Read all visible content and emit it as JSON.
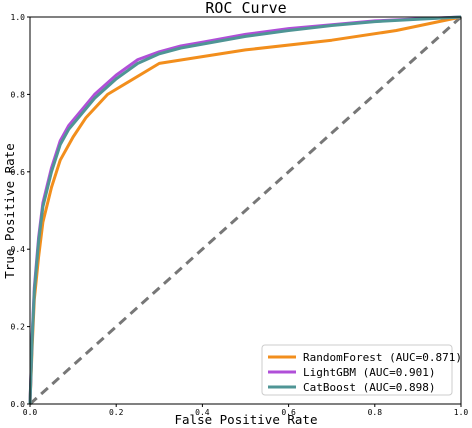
{
  "chart_data": {
    "type": "line",
    "title": "ROC Curve",
    "xlabel": "False Positive Rate",
    "ylabel": "True Positive Rate",
    "xlim": [
      0.0,
      1.0
    ],
    "ylim": [
      0.0,
      1.0
    ],
    "xticks": [
      "0.0",
      "0.2",
      "0.4",
      "0.6",
      "0.8",
      "1.0"
    ],
    "yticks": [
      "0.0",
      "0.2",
      "0.4",
      "0.6",
      "0.8",
      "1.0"
    ],
    "grid": false,
    "legend_position": "lower-right",
    "series": [
      {
        "name": "RandomForest (AUC=0.871)",
        "color": "#f28e1c",
        "x": [
          0.0,
          0.005,
          0.01,
          0.02,
          0.03,
          0.05,
          0.07,
          0.1,
          0.13,
          0.18,
          0.3,
          0.5,
          0.7,
          0.85,
          1.0
        ],
        "y": [
          0.0,
          0.15,
          0.27,
          0.38,
          0.47,
          0.56,
          0.63,
          0.69,
          0.74,
          0.8,
          0.88,
          0.915,
          0.94,
          0.965,
          1.0
        ]
      },
      {
        "name": "LightGBM (AUC=0.901)",
        "color": "#b04fd8",
        "x": [
          0.0,
          0.005,
          0.01,
          0.02,
          0.03,
          0.05,
          0.07,
          0.09,
          0.12,
          0.15,
          0.2,
          0.25,
          0.3,
          0.35,
          0.4,
          0.5,
          0.6,
          0.7,
          0.8,
          0.9,
          1.0
        ],
        "y": [
          0.0,
          0.18,
          0.3,
          0.43,
          0.52,
          0.61,
          0.68,
          0.72,
          0.76,
          0.8,
          0.85,
          0.89,
          0.91,
          0.925,
          0.935,
          0.955,
          0.97,
          0.98,
          0.99,
          0.995,
          1.0
        ]
      },
      {
        "name": "CatBoost (AUC=0.898)",
        "color": "#4f9595",
        "x": [
          0.0,
          0.005,
          0.01,
          0.02,
          0.03,
          0.05,
          0.07,
          0.09,
          0.12,
          0.15,
          0.2,
          0.25,
          0.3,
          0.35,
          0.4,
          0.5,
          0.6,
          0.7,
          0.8,
          0.9,
          1.0
        ],
        "y": [
          0.0,
          0.17,
          0.29,
          0.42,
          0.51,
          0.6,
          0.67,
          0.71,
          0.75,
          0.79,
          0.84,
          0.88,
          0.905,
          0.92,
          0.93,
          0.95,
          0.965,
          0.978,
          0.988,
          0.994,
          1.0
        ]
      }
    ],
    "reference_line": {
      "x": [
        0.0,
        1.0
      ],
      "y": [
        0.0,
        1.0
      ],
      "color": "#777777",
      "style": "dashed"
    }
  }
}
